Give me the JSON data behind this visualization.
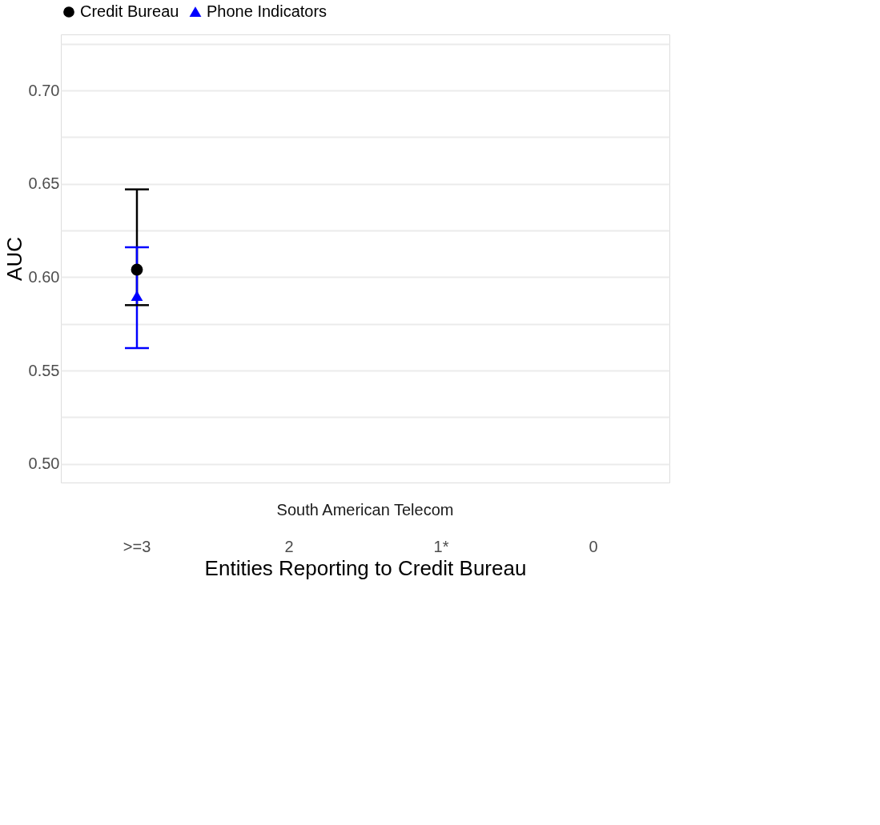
{
  "chart_data": {
    "type": "scatter",
    "xlabel": "Entities Reporting to Credit Bureau",
    "ylabel": "AUC",
    "categories": [
      ">=3",
      "2",
      "1*",
      "0"
    ],
    "series": [
      {
        "name": "Credit Bureau",
        "color": "#000000",
        "marker": "circle",
        "values": [
          0.604,
          null,
          null,
          null
        ],
        "errors": [
          [
            0.585,
            0.647
          ],
          null,
          null,
          null
        ]
      },
      {
        "name": "Phone Indicators",
        "color": "#0000ff",
        "marker": "triangle",
        "values": [
          0.59,
          null,
          null,
          null
        ],
        "errors": [
          [
            0.562,
            0.616
          ],
          null,
          null,
          null
        ]
      }
    ],
    "ylim": [
      0.49,
      0.73
    ],
    "yticks": [
      {
        "value": 0.5,
        "label": "0.50"
      },
      {
        "value": 0.525,
        "label": null
      },
      0.55,
      {
        "value": 0.575,
        "label": null
      },
      {
        "value": 0.6,
        "label": "0.60"
      },
      {
        "value": 0.625,
        "label": null
      },
      0.65,
      {
        "value": 0.675,
        "label": null
      },
      {
        "value": 0.7,
        "label": "0.70"
      },
      {
        "value": 0.725,
        "label": null
      }
    ],
    "grid": "y",
    "legend": "top",
    "annotations": [
      "South American Telecom"
    ]
  }
}
